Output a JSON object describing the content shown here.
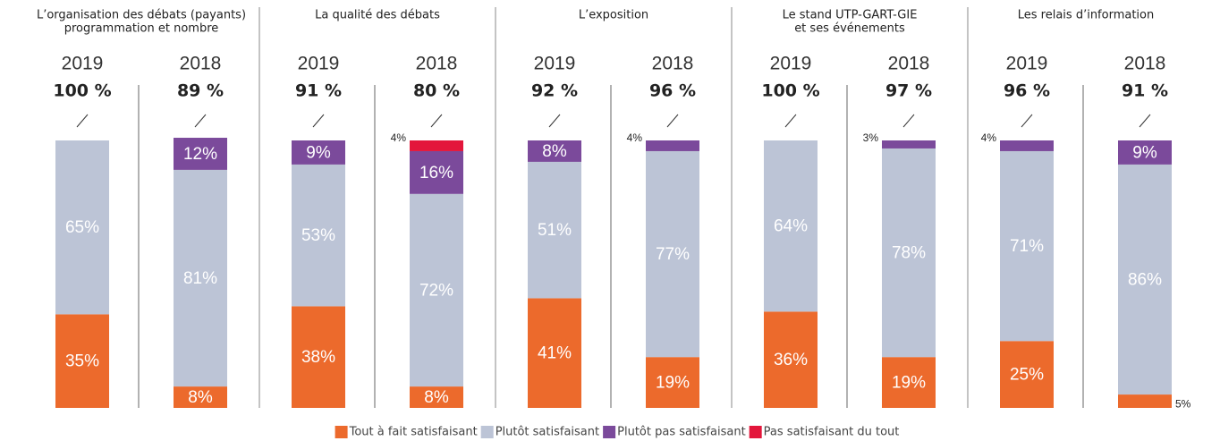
{
  "chart_data": [
    {
      "type": "bar",
      "stacked": true,
      "title": [
        "L’organisation des débats (payants)",
        "programmation et nombre"
      ],
      "categories": [
        "2019",
        "2018"
      ],
      "headers": [
        "100 %",
        "89 %"
      ],
      "ylim": [
        0,
        100
      ],
      "series": [
        {
          "name": "Tout à fait satisfaisant",
          "color": "#ec6a2c",
          "values": [
            35,
            8
          ],
          "value_labels": [
            "35%",
            "8%"
          ]
        },
        {
          "name": "Plutôt satisfaisant",
          "color": "#bcc4d6",
          "values": [
            65,
            81
          ],
          "value_labels": [
            "65%",
            "81%"
          ]
        },
        {
          "name": "Plutôt pas satisfaisant",
          "color": "#7b4a9b",
          "values": [
            null,
            12
          ],
          "value_labels": [
            null,
            "12%"
          ]
        },
        {
          "name": "Pas satisfaisant du tout",
          "color": "#e3163b",
          "values": [
            null,
            null
          ],
          "value_labels": [
            null,
            null
          ]
        }
      ]
    },
    {
      "type": "bar",
      "stacked": true,
      "title": [
        "La qualité des débats"
      ],
      "categories": [
        "2019",
        "2018"
      ],
      "headers": [
        "91 %",
        "80 %"
      ],
      "ylim": [
        0,
        100
      ],
      "series": [
        {
          "name": "Tout à fait satisfaisant",
          "color": "#ec6a2c",
          "values": [
            38,
            8
          ],
          "value_labels": [
            "38%",
            "8%"
          ]
        },
        {
          "name": "Plutôt satisfaisant",
          "color": "#bcc4d6",
          "values": [
            53,
            72
          ],
          "value_labels": [
            "53%",
            "72%"
          ]
        },
        {
          "name": "Plutôt pas satisfaisant",
          "color": "#7b4a9b",
          "values": [
            9,
            16
          ],
          "value_labels": [
            "9%",
            "16%"
          ]
        },
        {
          "name": "Pas satisfaisant du tout",
          "color": "#e3163b",
          "values": [
            null,
            4
          ],
          "value_labels": [
            null,
            "4%"
          ]
        }
      ]
    },
    {
      "type": "bar",
      "stacked": true,
      "title": [
        "L’exposition"
      ],
      "categories": [
        "2019",
        "2018"
      ],
      "headers": [
        "92 %",
        "96 %"
      ],
      "ylim": [
        0,
        100
      ],
      "series": [
        {
          "name": "Tout à fait satisfaisant",
          "color": "#ec6a2c",
          "values": [
            41,
            19
          ],
          "value_labels": [
            "41%",
            "19%"
          ]
        },
        {
          "name": "Plutôt satisfaisant",
          "color": "#bcc4d6",
          "values": [
            51,
            77
          ],
          "value_labels": [
            "51%",
            "77%"
          ]
        },
        {
          "name": "Plutôt pas satisfaisant",
          "color": "#7b4a9b",
          "values": [
            8,
            4
          ],
          "value_labels": [
            "8%",
            "4%"
          ]
        },
        {
          "name": "Pas satisfaisant du tout",
          "color": "#e3163b",
          "values": [
            null,
            null
          ],
          "value_labels": [
            null,
            null
          ]
        }
      ]
    },
    {
      "type": "bar",
      "stacked": true,
      "title": [
        "Le stand UTP-GART-GIE",
        "et ses événements"
      ],
      "categories": [
        "2019",
        "2018"
      ],
      "headers": [
        "100 %",
        "97 %"
      ],
      "ylim": [
        0,
        100
      ],
      "series": [
        {
          "name": "Tout à fait satisfaisant",
          "color": "#ec6a2c",
          "values": [
            36,
            19
          ],
          "value_labels": [
            "36%",
            "19%"
          ]
        },
        {
          "name": "Plutôt satisfaisant",
          "color": "#bcc4d6",
          "values": [
            64,
            78
          ],
          "value_labels": [
            "64%",
            "78%"
          ]
        },
        {
          "name": "Plutôt pas satisfaisant",
          "color": "#7b4a9b",
          "values": [
            null,
            3
          ],
          "value_labels": [
            null,
            "3%"
          ]
        },
        {
          "name": "Pas satisfaisant du tout",
          "color": "#e3163b",
          "values": [
            null,
            null
          ],
          "value_labels": [
            null,
            null
          ]
        }
      ]
    },
    {
      "type": "bar",
      "stacked": true,
      "title": [
        "Les relais d’information"
      ],
      "categories": [
        "2019",
        "2018"
      ],
      "headers": [
        "96 %",
        "91 %"
      ],
      "ylim": [
        0,
        100
      ],
      "series": [
        {
          "name": "Tout à fait satisfaisant",
          "color": "#ec6a2c",
          "values": [
            25,
            5
          ],
          "value_labels": [
            "25%",
            "5%"
          ]
        },
        {
          "name": "Plutôt satisfaisant",
          "color": "#bcc4d6",
          "values": [
            71,
            86
          ],
          "value_labels": [
            "71%",
            "86%"
          ]
        },
        {
          "name": "Plutôt pas satisfaisant",
          "color": "#7b4a9b",
          "values": [
            4,
            9
          ],
          "value_labels": [
            "4%",
            "9%"
          ]
        },
        {
          "name": "Pas satisfaisant du tout",
          "color": "#e3163b",
          "values": [
            null,
            null
          ],
          "value_labels": [
            null,
            null
          ]
        }
      ]
    }
  ]
}
